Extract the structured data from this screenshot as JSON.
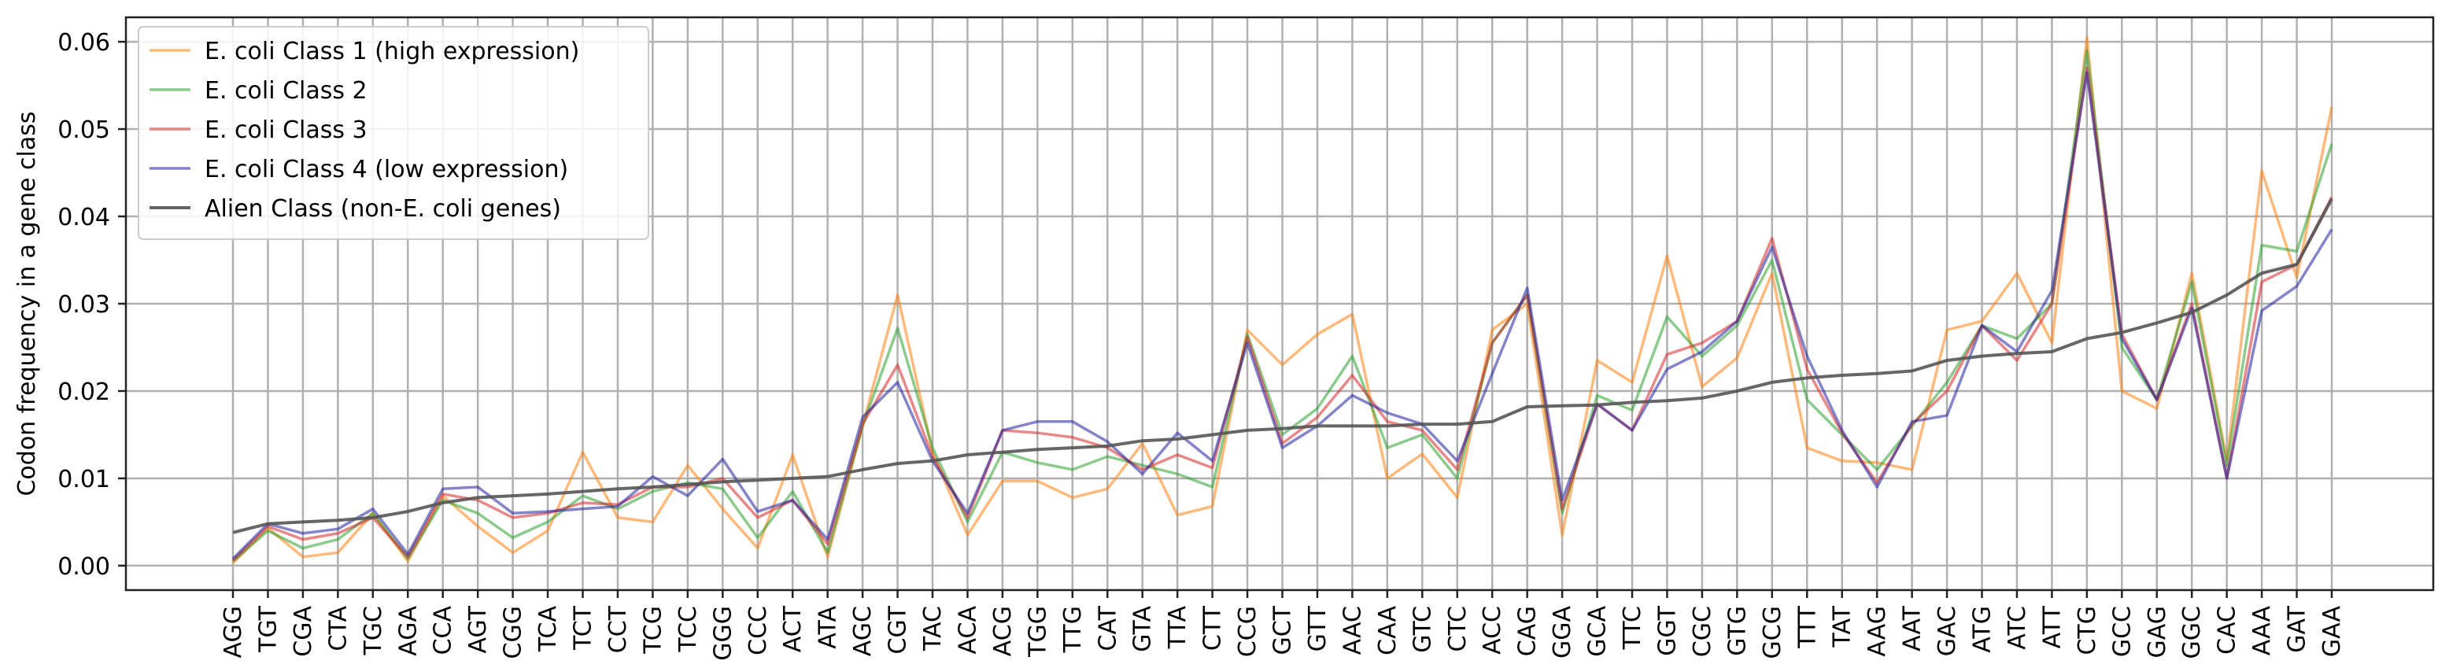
{
  "chart_data": {
    "type": "line",
    "title": "",
    "xlabel": "",
    "ylabel": "Codon frequency in a gene class",
    "ylim": [
      -0.0028,
      0.0628
    ],
    "yticks": [
      0.0,
      0.01,
      0.02,
      0.03,
      0.04,
      0.05,
      0.06
    ],
    "ytick_labels": [
      "0.00",
      "0.01",
      "0.02",
      "0.03",
      "0.04",
      "0.05",
      "0.06"
    ],
    "grid": true,
    "legend_position": "top-left",
    "categories": [
      "AGG",
      "TGT",
      "CGA",
      "CTA",
      "TGC",
      "AGA",
      "CCA",
      "AGT",
      "CGG",
      "TCA",
      "TCT",
      "CCT",
      "TCG",
      "TCC",
      "GGG",
      "CCC",
      "ACT",
      "ATA",
      "AGC",
      "CGT",
      "TAC",
      "ACA",
      "ACG",
      "TGG",
      "TTG",
      "CAT",
      "GTA",
      "TTA",
      "CTT",
      "CCG",
      "GCT",
      "GTT",
      "AAC",
      "CAA",
      "GTC",
      "CTC",
      "ACC",
      "CAG",
      "GGA",
      "GCA",
      "TTC",
      "GGT",
      "CGC",
      "GTG",
      "GCG",
      "TTT",
      "TAT",
      "AAG",
      "AAT",
      "GAC",
      "ATG",
      "ATC",
      "ATT",
      "CTG",
      "GCC",
      "GAG",
      "GGC",
      "CAC",
      "AAA",
      "GAT",
      "GAA"
    ],
    "series": [
      {
        "name": "E. coli Class 1  (high expression)",
        "color": "#ff7f0e",
        "values": [
          0.0003,
          0.0043,
          0.001,
          0.0015,
          0.006,
          0.0005,
          0.008,
          0.0045,
          0.0015,
          0.004,
          0.013,
          0.0055,
          0.005,
          0.0115,
          0.0065,
          0.002,
          0.0127,
          0.001,
          0.016,
          0.031,
          0.013,
          0.0035,
          0.0097,
          0.0097,
          0.0078,
          0.0088,
          0.014,
          0.0058,
          0.0068,
          0.027,
          0.023,
          0.0265,
          0.0288,
          0.01,
          0.0128,
          0.0078,
          0.027,
          0.03,
          0.0035,
          0.0235,
          0.021,
          0.0355,
          0.0205,
          0.0238,
          0.0335,
          0.0135,
          0.012,
          0.0118,
          0.011,
          0.027,
          0.028,
          0.0335,
          0.0255,
          0.0605,
          0.02,
          0.018,
          0.0335,
          0.012,
          0.0452,
          0.033,
          0.0525
        ]
      },
      {
        "name": "E. coli Class 2",
        "color": "#2ca02c",
        "values": [
          0.0005,
          0.004,
          0.002,
          0.003,
          0.006,
          0.0008,
          0.0075,
          0.006,
          0.0032,
          0.005,
          0.008,
          0.0065,
          0.0085,
          0.0095,
          0.0088,
          0.0032,
          0.0085,
          0.0015,
          0.016,
          0.0272,
          0.0135,
          0.005,
          0.013,
          0.0118,
          0.011,
          0.0125,
          0.0115,
          0.0105,
          0.009,
          0.0265,
          0.015,
          0.018,
          0.024,
          0.0135,
          0.015,
          0.01,
          0.0255,
          0.031,
          0.006,
          0.0195,
          0.0178,
          0.0285,
          0.024,
          0.0275,
          0.035,
          0.019,
          0.015,
          0.011,
          0.016,
          0.021,
          0.0275,
          0.026,
          0.03,
          0.059,
          0.025,
          0.019,
          0.0325,
          0.0115,
          0.0367,
          0.036,
          0.0483
        ]
      },
      {
        "name": "E. coli Class 3",
        "color": "#d62728",
        "values": [
          0.0006,
          0.0045,
          0.003,
          0.0037,
          0.0055,
          0.001,
          0.0082,
          0.0075,
          0.0055,
          0.006,
          0.0072,
          0.007,
          0.009,
          0.009,
          0.01,
          0.0055,
          0.0075,
          0.0025,
          0.0162,
          0.023,
          0.0125,
          0.0055,
          0.0155,
          0.0152,
          0.0147,
          0.0135,
          0.011,
          0.0127,
          0.0112,
          0.0262,
          0.014,
          0.017,
          0.0218,
          0.0165,
          0.0155,
          0.011,
          0.0255,
          0.031,
          0.0065,
          0.0185,
          0.0155,
          0.0242,
          0.0255,
          0.028,
          0.0375,
          0.0225,
          0.0152,
          0.0095,
          0.0162,
          0.02,
          0.0275,
          0.0235,
          0.03,
          0.057,
          0.0265,
          0.019,
          0.03,
          0.01,
          0.0325,
          0.0345,
          0.0422
        ]
      },
      {
        "name": "E. coli Class 4  (low expression)",
        "color": "#1f1fa0",
        "values": [
          0.0008,
          0.0048,
          0.0037,
          0.0042,
          0.0065,
          0.0013,
          0.0088,
          0.009,
          0.006,
          0.0062,
          0.0065,
          0.0068,
          0.0102,
          0.008,
          0.0122,
          0.0062,
          0.0075,
          0.003,
          0.017,
          0.021,
          0.012,
          0.006,
          0.0155,
          0.0165,
          0.0165,
          0.0142,
          0.0105,
          0.0152,
          0.012,
          0.0255,
          0.0135,
          0.016,
          0.0195,
          0.0175,
          0.0162,
          0.012,
          0.022,
          0.0318,
          0.0075,
          0.0185,
          0.0155,
          0.0225,
          0.0245,
          0.028,
          0.0365,
          0.024,
          0.0155,
          0.009,
          0.0165,
          0.0172,
          0.0275,
          0.0245,
          0.0315,
          0.0565,
          0.026,
          0.019,
          0.0295,
          0.01,
          0.0292,
          0.032,
          0.0385
        ]
      },
      {
        "name": "Alien Class  (non-E. coli genes)",
        "color": "#555555",
        "values": [
          0.0038,
          0.0048,
          0.005,
          0.0052,
          0.0055,
          0.0062,
          0.0072,
          0.0078,
          0.008,
          0.0082,
          0.0085,
          0.0088,
          0.009,
          0.0093,
          0.0096,
          0.0098,
          0.01,
          0.0102,
          0.011,
          0.0117,
          0.012,
          0.0127,
          0.013,
          0.0133,
          0.0135,
          0.0137,
          0.0143,
          0.0145,
          0.015,
          0.0155,
          0.0157,
          0.016,
          0.016,
          0.016,
          0.0162,
          0.0162,
          0.0165,
          0.0182,
          0.0183,
          0.0184,
          0.0187,
          0.0189,
          0.0192,
          0.02,
          0.021,
          0.0215,
          0.0218,
          0.022,
          0.0223,
          0.0235,
          0.024,
          0.0243,
          0.0245,
          0.026,
          0.0267,
          0.0278,
          0.029,
          0.031,
          0.0335,
          0.0345,
          0.042
        ]
      }
    ]
  }
}
